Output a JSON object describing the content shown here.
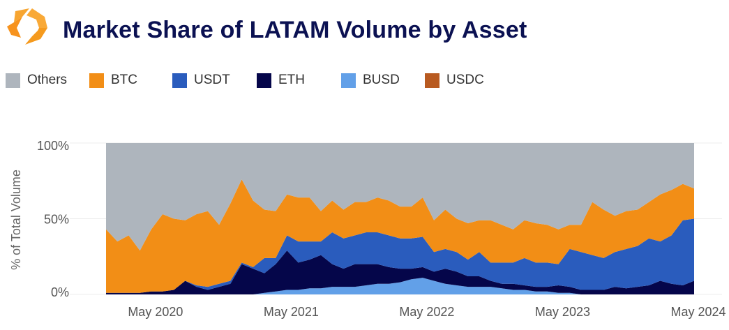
{
  "header": {
    "title": "Market Share of LATAM Volume by Asset",
    "logo": "orange-hexagon-logo"
  },
  "colors": {
    "title": "#0b1152",
    "logo": "#f59a1e"
  },
  "chart_data": {
    "type": "area",
    "stacked": true,
    "ylabel": "% of Total Volume",
    "xlabel": "",
    "ylim": [
      0,
      100
    ],
    "yticks": [
      {
        "value": 0,
        "label": "0%"
      },
      {
        "value": 50,
        "label": "50%"
      },
      {
        "value": 100,
        "label": "100%"
      }
    ],
    "xticks": [
      {
        "value": "2020-05",
        "label": "May 2020"
      },
      {
        "value": "2021-05",
        "label": "May 2021"
      },
      {
        "value": "2022-05",
        "label": "May 2022"
      },
      {
        "value": "2023-05",
        "label": "May 2023"
      },
      {
        "value": "2024-05",
        "label": "May 2024"
      }
    ],
    "grid": true,
    "legend_position": "top-left",
    "x": [
      "2020-01",
      "2020-02",
      "2020-03",
      "2020-04",
      "2020-05",
      "2020-06",
      "2020-07",
      "2020-08",
      "2020-09",
      "2020-10",
      "2020-11",
      "2020-12",
      "2021-01",
      "2021-02",
      "2021-03",
      "2021-04",
      "2021-05",
      "2021-06",
      "2021-07",
      "2021-08",
      "2021-09",
      "2021-10",
      "2021-11",
      "2021-12",
      "2022-01",
      "2022-02",
      "2022-03",
      "2022-04",
      "2022-05",
      "2022-06",
      "2022-07",
      "2022-08",
      "2022-09",
      "2022-10",
      "2022-11",
      "2022-12",
      "2023-01",
      "2023-02",
      "2023-03",
      "2023-04",
      "2023-05",
      "2023-06",
      "2023-07",
      "2023-08",
      "2023-09",
      "2023-10",
      "2023-11",
      "2023-12",
      "2024-01",
      "2024-02",
      "2024-03",
      "2024-04",
      "2024-05"
    ],
    "legend_order": [
      "Others",
      "BTC",
      "USDT",
      "ETH",
      "BUSD",
      "USDC"
    ],
    "series": [
      {
        "name": "BUSD",
        "color": "#62a0e8",
        "values": [
          0,
          0,
          0,
          0,
          0,
          0,
          0,
          0,
          0,
          0,
          0,
          0,
          0,
          0,
          1,
          2,
          3,
          3,
          4,
          4,
          5,
          5,
          5,
          6,
          7,
          7,
          8,
          10,
          11,
          9,
          7,
          6,
          5,
          5,
          5,
          4,
          3,
          3,
          2,
          2,
          1,
          1,
          0,
          0,
          0,
          0,
          0,
          0,
          0,
          0,
          0,
          0,
          0
        ]
      },
      {
        "name": "ETH",
        "color": "#05064a",
        "values": [
          1,
          1,
          1,
          1,
          2,
          2,
          3,
          9,
          5,
          3,
          5,
          7,
          20,
          17,
          13,
          18,
          26,
          18,
          19,
          22,
          15,
          12,
          15,
          14,
          13,
          11,
          9,
          7,
          7,
          6,
          10,
          9,
          7,
          7,
          4,
          3,
          4,
          3,
          3,
          3,
          5,
          4,
          3,
          3,
          3,
          5,
          4,
          5,
          6,
          9,
          7,
          6,
          9
        ]
      },
      {
        "name": "USDT",
        "color": "#2a5cbd",
        "values": [
          0,
          0,
          0,
          0,
          0,
          0,
          0,
          0,
          1,
          2,
          2,
          2,
          1,
          1,
          10,
          4,
          10,
          14,
          12,
          9,
          21,
          20,
          19,
          21,
          21,
          21,
          20,
          20,
          20,
          13,
          13,
          13,
          11,
          16,
          12,
          14,
          14,
          18,
          16,
          16,
          14,
          25,
          25,
          23,
          21,
          23,
          26,
          27,
          31,
          26,
          32,
          43,
          41
        ]
      },
      {
        "name": "USDC",
        "color": "#b85a20",
        "values": [
          0,
          0,
          0,
          0,
          0,
          0,
          0,
          0,
          0,
          0,
          0,
          0,
          0,
          0,
          0,
          0,
          0,
          0,
          0,
          0,
          0,
          0,
          0,
          0,
          0,
          0,
          0,
          0,
          0,
          0,
          0,
          0,
          0,
          0,
          0,
          0,
          0,
          0,
          0,
          0,
          0,
          0,
          0,
          0,
          0,
          0,
          0,
          0,
          0,
          0,
          0,
          0,
          0
        ]
      },
      {
        "name": "BTC",
        "color": "#f28e16",
        "values": [
          42,
          34,
          38,
          28,
          41,
          51,
          47,
          40,
          47,
          50,
          39,
          51,
          55,
          44,
          32,
          31,
          27,
          29,
          29,
          20,
          21,
          19,
          22,
          20,
          23,
          23,
          21,
          21,
          26,
          21,
          26,
          22,
          24,
          21,
          28,
          25,
          22,
          25,
          26,
          25,
          23,
          16,
          18,
          35,
          32,
          24,
          25,
          24,
          24,
          31,
          30,
          24,
          20
        ]
      },
      {
        "name": "Others",
        "color": "#aeb5bd",
        "values": [
          57,
          65,
          61,
          71,
          57,
          47,
          50,
          51,
          47,
          45,
          54,
          40,
          24,
          38,
          44,
          45,
          34,
          36,
          36,
          45,
          38,
          44,
          39,
          39,
          36,
          38,
          42,
          42,
          36,
          51,
          44,
          50,
          53,
          51,
          51,
          54,
          57,
          51,
          53,
          54,
          57,
          54,
          54,
          39,
          44,
          48,
          45,
          44,
          39,
          34,
          31,
          27,
          30
        ]
      }
    ]
  }
}
